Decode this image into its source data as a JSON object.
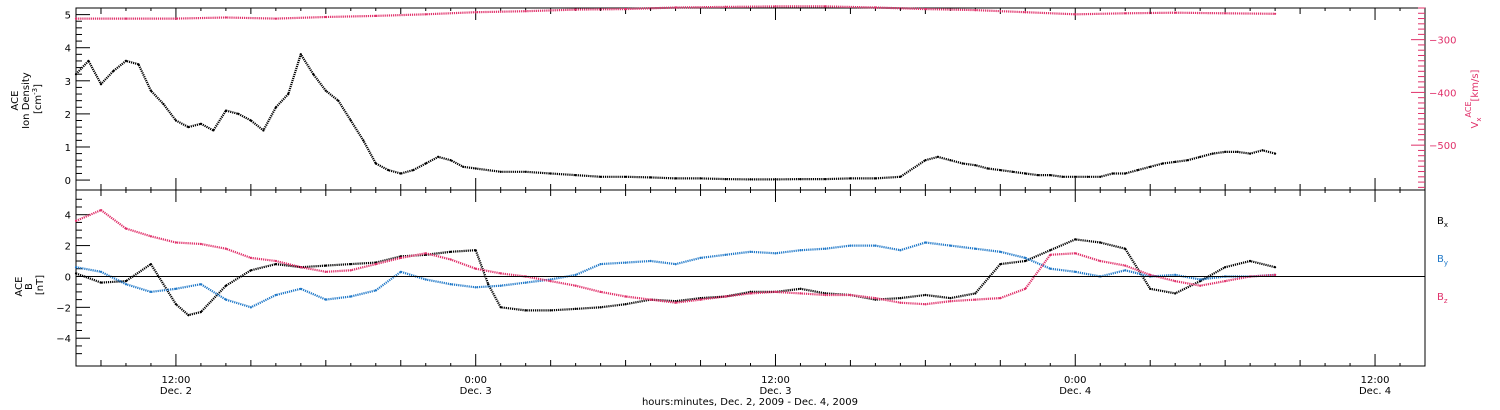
{
  "chart_data": [
    {
      "type": "scatter",
      "xlabel": "hours:minutes, Dec.  2, 2009 - Dec.  4, 2009",
      "x_ticks": [
        {
          "time": "12:00",
          "date": "Dec. 2",
          "hours": 12
        },
        {
          "time": "0:00",
          "date": "Dec. 3",
          "hours": 24
        },
        {
          "time": "12:00",
          "date": "Dec. 3",
          "hours": 36
        },
        {
          "time": "0:00",
          "date": "Dec. 4",
          "hours": 48
        },
        {
          "time": "12:00",
          "date": "Dec. 4",
          "hours": 60
        }
      ],
      "xlim_hours": [
        8,
        62
      ],
      "left_axis": {
        "label_lines": [
          "ACE",
          "Ion Density"
        ],
        "unit": "[cm",
        "unit_sup": "-3",
        "unit_end": "]",
        "ylim": [
          -0.3,
          5.2
        ],
        "ticks": [
          0,
          1,
          2,
          3,
          4,
          5
        ],
        "color": "#000000"
      },
      "right_axis": {
        "label_main": "V",
        "label_sub": "x",
        "label_sup": "ACE",
        "unit": "[km/s]",
        "ylim": [
          -585,
          -240
        ],
        "ticks": [
          -300,
          -400,
          -500
        ],
        "tick_labels": [
          "−300",
          "−400",
          "−500"
        ],
        "color": "#e0306a"
      },
      "series": [
        {
          "color": "#000000",
          "axis": "left",
          "points": [
            [
              8,
              3.2
            ],
            [
              8.5,
              3.6
            ],
            [
              9,
              2.9
            ],
            [
              9.5,
              3.3
            ],
            [
              10,
              3.6
            ],
            [
              10.5,
              3.5
            ],
            [
              11,
              2.7
            ],
            [
              11.5,
              2.3
            ],
            [
              12,
              1.8
            ],
            [
              12.5,
              1.6
            ],
            [
              13,
              1.7
            ],
            [
              13.5,
              1.5
            ],
            [
              14,
              2.1
            ],
            [
              14.5,
              2.0
            ],
            [
              15,
              1.8
            ],
            [
              15.5,
              1.5
            ],
            [
              16,
              2.2
            ],
            [
              16.5,
              2.6
            ],
            [
              17,
              3.8
            ],
            [
              17.5,
              3.2
            ],
            [
              18,
              2.7
            ],
            [
              18.5,
              2.4
            ],
            [
              19,
              1.8
            ],
            [
              19.5,
              1.2
            ],
            [
              20,
              0.5
            ],
            [
              20.5,
              0.3
            ],
            [
              21,
              0.2
            ],
            [
              21.5,
              0.3
            ],
            [
              22,
              0.5
            ],
            [
              22.5,
              0.7
            ],
            [
              23,
              0.6
            ],
            [
              23.5,
              0.4
            ],
            [
              24,
              0.35
            ],
            [
              25,
              0.25
            ],
            [
              26,
              0.25
            ],
            [
              27,
              0.2
            ],
            [
              28,
              0.15
            ],
            [
              29,
              0.1
            ],
            [
              30,
              0.1
            ],
            [
              31,
              0.08
            ],
            [
              32,
              0.05
            ],
            [
              33,
              0.05
            ],
            [
              34,
              0.03
            ],
            [
              35,
              0.02
            ],
            [
              36,
              0.02
            ],
            [
              37,
              0.03
            ],
            [
              38,
              0.03
            ],
            [
              39,
              0.05
            ],
            [
              40,
              0.05
            ],
            [
              41,
              0.1
            ],
            [
              42,
              0.6
            ],
            [
              42.5,
              0.7
            ],
            [
              43,
              0.6
            ],
            [
              43.5,
              0.5
            ],
            [
              44,
              0.45
            ],
            [
              44.5,
              0.35
            ],
            [
              45,
              0.3
            ],
            [
              45.5,
              0.25
            ],
            [
              46,
              0.2
            ],
            [
              46.5,
              0.15
            ],
            [
              47,
              0.15
            ],
            [
              47.5,
              0.1
            ],
            [
              48,
              0.1
            ],
            [
              48.5,
              0.1
            ],
            [
              49,
              0.1
            ],
            [
              49.5,
              0.2
            ],
            [
              50,
              0.2
            ],
            [
              50.5,
              0.3
            ],
            [
              51,
              0.4
            ],
            [
              51.5,
              0.5
            ],
            [
              52,
              0.55
            ],
            [
              52.5,
              0.6
            ],
            [
              53,
              0.7
            ],
            [
              53.5,
              0.8
            ],
            [
              54,
              0.85
            ],
            [
              54.5,
              0.85
            ],
            [
              55,
              0.8
            ],
            [
              55.5,
              0.9
            ],
            [
              56,
              0.8
            ]
          ]
        },
        {
          "color": "#e0306a",
          "axis": "right",
          "points": [
            [
              8,
              -260
            ],
            [
              10,
              -260
            ],
            [
              12,
              -260
            ],
            [
              14,
              -258
            ],
            [
              16,
              -260
            ],
            [
              18,
              -257
            ],
            [
              20,
              -255
            ],
            [
              22,
              -252
            ],
            [
              24,
              -248
            ],
            [
              26,
              -246
            ],
            [
              28,
              -243
            ],
            [
              30,
              -242
            ],
            [
              32,
              -239
            ],
            [
              34,
              -238
            ],
            [
              36,
              -237
            ],
            [
              38,
              -237
            ],
            [
              40,
              -239
            ],
            [
              42,
              -242
            ],
            [
              44,
              -244
            ],
            [
              46,
              -248
            ],
            [
              48,
              -252
            ],
            [
              50,
              -250
            ],
            [
              52,
              -249
            ],
            [
              54,
              -250
            ],
            [
              56,
              -251
            ]
          ]
        }
      ]
    },
    {
      "type": "scatter",
      "ylabel_lines": [
        "ACE",
        "B"
      ],
      "unit": "[nT]",
      "ylim": [
        -5.8,
        5.6
      ],
      "ticks": [
        4,
        2,
        0,
        -2,
        -4
      ],
      "tick_labels": [
        "4",
        "2",
        "0",
        "−2",
        "−4"
      ],
      "zero_line": true,
      "legend": [
        {
          "main": "B",
          "sub": "x",
          "color": "#000000"
        },
        {
          "main": "B",
          "sub": "y",
          "color": "#1f78c8"
        },
        {
          "main": "B",
          "sub": "z",
          "color": "#e0306a"
        }
      ],
      "series": [
        {
          "color": "#000000",
          "points": [
            [
              8,
              0.2
            ],
            [
              9,
              -0.4
            ],
            [
              10,
              -0.3
            ],
            [
              11,
              0.8
            ],
            [
              12,
              -1.8
            ],
            [
              12.5,
              -2.5
            ],
            [
              13,
              -2.3
            ],
            [
              14,
              -0.6
            ],
            [
              15,
              0.4
            ],
            [
              16,
              0.8
            ],
            [
              17,
              0.6
            ],
            [
              18,
              0.7
            ],
            [
              19,
              0.8
            ],
            [
              20,
              0.9
            ],
            [
              21,
              1.3
            ],
            [
              22,
              1.4
            ],
            [
              23,
              1.6
            ],
            [
              24,
              1.7
            ],
            [
              24.5,
              -0.5
            ],
            [
              25,
              -2.0
            ],
            [
              26,
              -2.2
            ],
            [
              27,
              -2.2
            ],
            [
              28,
              -2.1
            ],
            [
              29,
              -2.0
            ],
            [
              30,
              -1.8
            ],
            [
              31,
              -1.5
            ],
            [
              32,
              -1.6
            ],
            [
              33,
              -1.4
            ],
            [
              34,
              -1.3
            ],
            [
              35,
              -1.0
            ],
            [
              36,
              -1.0
            ],
            [
              37,
              -0.8
            ],
            [
              38,
              -1.1
            ],
            [
              39,
              -1.2
            ],
            [
              40,
              -1.5
            ],
            [
              41,
              -1.4
            ],
            [
              42,
              -1.2
            ],
            [
              43,
              -1.4
            ],
            [
              44,
              -1.1
            ],
            [
              45,
              0.8
            ],
            [
              46,
              1.0
            ],
            [
              47,
              1.7
            ],
            [
              48,
              2.4
            ],
            [
              49,
              2.2
            ],
            [
              50,
              1.8
            ],
            [
              51,
              -0.8
            ],
            [
              52,
              -1.1
            ],
            [
              53,
              -0.3
            ],
            [
              54,
              0.6
            ],
            [
              55,
              1.0
            ],
            [
              56,
              0.6
            ]
          ]
        },
        {
          "color": "#1f78c8",
          "points": [
            [
              8,
              0.6
            ],
            [
              9,
              0.3
            ],
            [
              10,
              -0.5
            ],
            [
              11,
              -1.0
            ],
            [
              12,
              -0.8
            ],
            [
              13,
              -0.5
            ],
            [
              14,
              -1.5
            ],
            [
              15,
              -2.0
            ],
            [
              16,
              -1.2
            ],
            [
              17,
              -0.8
            ],
            [
              18,
              -1.5
            ],
            [
              19,
              -1.3
            ],
            [
              20,
              -0.9
            ],
            [
              21,
              0.3
            ],
            [
              22,
              -0.2
            ],
            [
              23,
              -0.5
            ],
            [
              24,
              -0.7
            ],
            [
              25,
              -0.6
            ],
            [
              26,
              -0.4
            ],
            [
              27,
              -0.2
            ],
            [
              28,
              0.1
            ],
            [
              29,
              0.8
            ],
            [
              30,
              0.9
            ],
            [
              31,
              1.0
            ],
            [
              32,
              0.8
            ],
            [
              33,
              1.2
            ],
            [
              34,
              1.4
            ],
            [
              35,
              1.6
            ],
            [
              36,
              1.5
            ],
            [
              37,
              1.7
            ],
            [
              38,
              1.8
            ],
            [
              39,
              2.0
            ],
            [
              40,
              2.0
            ],
            [
              41,
              1.7
            ],
            [
              42,
              2.2
            ],
            [
              43,
              2.0
            ],
            [
              44,
              1.8
            ],
            [
              45,
              1.6
            ],
            [
              46,
              1.2
            ],
            [
              47,
              0.5
            ],
            [
              48,
              0.3
            ],
            [
              49,
              0.0
            ],
            [
              50,
              0.4
            ],
            [
              51,
              0.0
            ],
            [
              52,
              0.1
            ],
            [
              53,
              -0.2
            ],
            [
              54,
              0.0
            ],
            [
              55,
              0.0
            ],
            [
              56,
              0.1
            ]
          ]
        },
        {
          "color": "#e0306a",
          "points": [
            [
              8,
              3.6
            ],
            [
              9,
              4.3
            ],
            [
              10,
              3.1
            ],
            [
              11,
              2.6
            ],
            [
              12,
              2.2
            ],
            [
              13,
              2.1
            ],
            [
              14,
              1.8
            ],
            [
              15,
              1.2
            ],
            [
              16,
              1.0
            ],
            [
              17,
              0.6
            ],
            [
              18,
              0.3
            ],
            [
              19,
              0.4
            ],
            [
              20,
              0.8
            ],
            [
              21,
              1.2
            ],
            [
              22,
              1.5
            ],
            [
              23,
              1.1
            ],
            [
              24,
              0.5
            ],
            [
              25,
              0.2
            ],
            [
              26,
              0.0
            ],
            [
              27,
              -0.3
            ],
            [
              28,
              -0.6
            ],
            [
              29,
              -1.0
            ],
            [
              30,
              -1.3
            ],
            [
              31,
              -1.5
            ],
            [
              32,
              -1.7
            ],
            [
              33,
              -1.5
            ],
            [
              34,
              -1.3
            ],
            [
              35,
              -1.1
            ],
            [
              36,
              -1.0
            ],
            [
              37,
              -1.1
            ],
            [
              38,
              -1.2
            ],
            [
              39,
              -1.2
            ],
            [
              40,
              -1.4
            ],
            [
              41,
              -1.7
            ],
            [
              42,
              -1.8
            ],
            [
              43,
              -1.6
            ],
            [
              44,
              -1.5
            ],
            [
              45,
              -1.4
            ],
            [
              46,
              -0.8
            ],
            [
              47,
              1.4
            ],
            [
              48,
              1.5
            ],
            [
              49,
              1.0
            ],
            [
              50,
              0.7
            ],
            [
              51,
              0.1
            ],
            [
              52,
              -0.3
            ],
            [
              53,
              -0.6
            ],
            [
              54,
              -0.3
            ],
            [
              55,
              0.0
            ],
            [
              56,
              0.1
            ]
          ]
        }
      ]
    }
  ]
}
